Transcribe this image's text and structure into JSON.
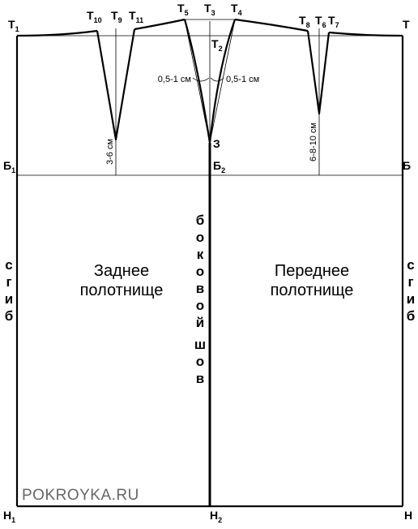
{
  "points": {
    "t1": {
      "main": "Т",
      "sub": "1"
    },
    "t10": {
      "main": "Т",
      "sub": "10"
    },
    "t9": {
      "main": "Т",
      "sub": "9"
    },
    "t11": {
      "main": "Т",
      "sub": "11"
    },
    "t5": {
      "main": "Т",
      "sub": "5"
    },
    "t3": {
      "main": "Т",
      "sub": "3"
    },
    "t4": {
      "main": "Т",
      "sub": "4"
    },
    "t2": {
      "main": "Т",
      "sub": "2"
    },
    "t8": {
      "main": "Т",
      "sub": "8"
    },
    "t6": {
      "main": "Т",
      "sub": "6"
    },
    "t7": {
      "main": "Т",
      "sub": "7"
    },
    "t": {
      "main": "Т",
      "sub": ""
    },
    "z": {
      "main": "З",
      "sub": ""
    },
    "b1": {
      "main": "Б",
      "sub": "1"
    },
    "b2": {
      "main": "Б",
      "sub": "2"
    },
    "b": {
      "main": "Б",
      "sub": ""
    },
    "n1": {
      "main": "Н",
      "sub": "1"
    },
    "n2": {
      "main": "Н",
      "sub": "2"
    },
    "n": {
      "main": "Н",
      "sub": ""
    }
  },
  "dimensions": {
    "back_side_shift": "0,5-1 см",
    "front_side_shift": "0,5-1 см",
    "back_dart_length": "3-6 см",
    "front_dart_length": "6-8-10 см"
  },
  "panels": {
    "back_line1": "Заднее",
    "back_line2": "полотнище",
    "front_line1": "Переднее",
    "front_line2": "полотнище"
  },
  "fold_left": [
    "с",
    "г",
    "и",
    "б"
  ],
  "fold_right": [
    "с",
    "г",
    "и",
    "б"
  ],
  "side_seam": [
    "б",
    "о",
    "к",
    "о",
    "в",
    "о",
    "й",
    "ш",
    "о",
    "в"
  ],
  "watermark": "POKROYKA.RU"
}
